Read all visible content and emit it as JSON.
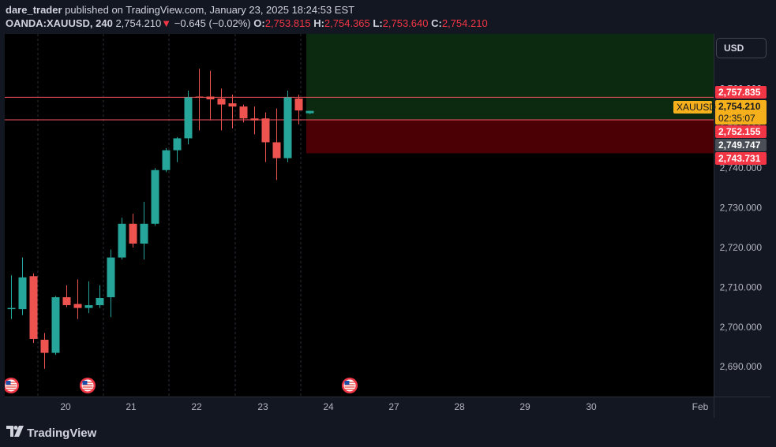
{
  "header": {
    "author": "dare_trader",
    "published_text": "published on TradingView.com, January 23, 2025 18:24:53 EST",
    "symbol_line": "OANDA:XAUUSD, 240",
    "last_price": "2,754.210",
    "change_arrow": "▼",
    "change": "−0.645 (−0.02%)",
    "o_label": "O:",
    "o_value": "2,753.815",
    "h_label": "H:",
    "h_value": "2,754.365",
    "l_label": "L:",
    "l_value": "2,753.640",
    "c_label": "C:",
    "c_value": "2,754.210"
  },
  "currency_button": "USD",
  "footer": {
    "logo_text": "TradingView",
    "logo_icon": "tradingview-logo-icon"
  },
  "price_scale": {
    "ticks": [
      "2,760.000",
      "2,750.000",
      "2,740.000",
      "2,730.000",
      "2,720.000",
      "2,710.000",
      "2,700.000",
      "2,690.000"
    ],
    "tick_values": [
      2760,
      2750,
      2740,
      2730,
      2720,
      2710,
      2700,
      2690
    ]
  },
  "price_labels": {
    "take_profit": "2,757.835",
    "symbol_tag": "XAUUSD",
    "current": "2,754.210",
    "countdown": "02:35:07",
    "entry": "2,752.155",
    "gray": "2,749.747",
    "stop_loss": "2,743.731"
  },
  "colors": {
    "up": "#26a69a",
    "down": "#ef5350",
    "background": "#000000",
    "profit_zone": "#0b2a10",
    "loss_zone": "#4a0005",
    "current_tag": "#f5b01b",
    "label_red": "#f23645",
    "label_gray": "#4a4e57"
  },
  "chart_data": {
    "type": "candlestick",
    "timeframe": "240",
    "x_tick_labels": [
      "20",
      "21",
      "22",
      "23",
      "24",
      "27",
      "28",
      "29",
      "30",
      "Feb"
    ],
    "ylim": [
      2683,
      2770
    ],
    "event_icons": [
      "us-flag-icon",
      "us-flag-icon",
      "us-flag-icon"
    ],
    "candles": [
      {
        "o": 2704.8,
        "h": 2713.0,
        "l": 2702.0,
        "c": 2704.8
      },
      {
        "o": 2704.5,
        "h": 2717.5,
        "l": 2703.0,
        "c": 2712.5
      },
      {
        "o": 2712.8,
        "h": 2713.5,
        "l": 2696.0,
        "c": 2697.0
      },
      {
        "o": 2696.8,
        "h": 2698.5,
        "l": 2689.5,
        "c": 2693.5
      },
      {
        "o": 2693.5,
        "h": 2707.8,
        "l": 2693.0,
        "c": 2707.5
      },
      {
        "o": 2707.5,
        "h": 2710.5,
        "l": 2705.0,
        "c": 2705.5
      },
      {
        "o": 2705.8,
        "h": 2712.0,
        "l": 2702.0,
        "c": 2704.8
      },
      {
        "o": 2704.8,
        "h": 2711.5,
        "l": 2703.5,
        "c": 2705.5
      },
      {
        "o": 2705.5,
        "h": 2710.5,
        "l": 2704.8,
        "c": 2707.3
      },
      {
        "o": 2707.5,
        "h": 2719.5,
        "l": 2702.5,
        "c": 2717.5
      },
      {
        "o": 2717.5,
        "h": 2727.5,
        "l": 2717.0,
        "c": 2726.0
      },
      {
        "o": 2726.0,
        "h": 2728.5,
        "l": 2720.0,
        "c": 2721.0
      },
      {
        "o": 2721.0,
        "h": 2731.5,
        "l": 2717.0,
        "c": 2726.0
      },
      {
        "o": 2726.0,
        "h": 2740.0,
        "l": 2725.5,
        "c": 2739.5
      },
      {
        "o": 2739.5,
        "h": 2745.0,
        "l": 2739.0,
        "c": 2744.5
      },
      {
        "o": 2744.5,
        "h": 2747.8,
        "l": 2741.5,
        "c": 2747.5
      },
      {
        "o": 2747.5,
        "h": 2759.5,
        "l": 2746.0,
        "c": 2757.8
      },
      {
        "o": 2758.0,
        "h": 2765.0,
        "l": 2749.5,
        "c": 2757.8
      },
      {
        "o": 2758.0,
        "h": 2764.5,
        "l": 2752.0,
        "c": 2757.3
      },
      {
        "o": 2757.5,
        "h": 2760.0,
        "l": 2749.5,
        "c": 2756.0
      },
      {
        "o": 2756.3,
        "h": 2758.5,
        "l": 2750.0,
        "c": 2755.5
      },
      {
        "o": 2755.5,
        "h": 2756.0,
        "l": 2751.5,
        "c": 2752.5
      },
      {
        "o": 2752.5,
        "h": 2755.5,
        "l": 2748.5,
        "c": 2752.0
      },
      {
        "o": 2752.5,
        "h": 2754.0,
        "l": 2741.5,
        "c": 2746.5
      },
      {
        "o": 2746.5,
        "h": 2755.0,
        "l": 2737.0,
        "c": 2742.5
      },
      {
        "o": 2742.5,
        "h": 2759.5,
        "l": 2741.5,
        "c": 2757.8
      },
      {
        "o": 2757.5,
        "h": 2758.5,
        "l": 2751.0,
        "c": 2754.5
      },
      {
        "o": 2753.8,
        "h": 2754.4,
        "l": 2753.6,
        "c": 2754.2
      }
    ],
    "position": {
      "take_profit": 2757.835,
      "entry": 2752.155,
      "stop_loss": 2743.731
    },
    "horizontal_lines": [
      2757.835,
      2752.155
    ]
  }
}
